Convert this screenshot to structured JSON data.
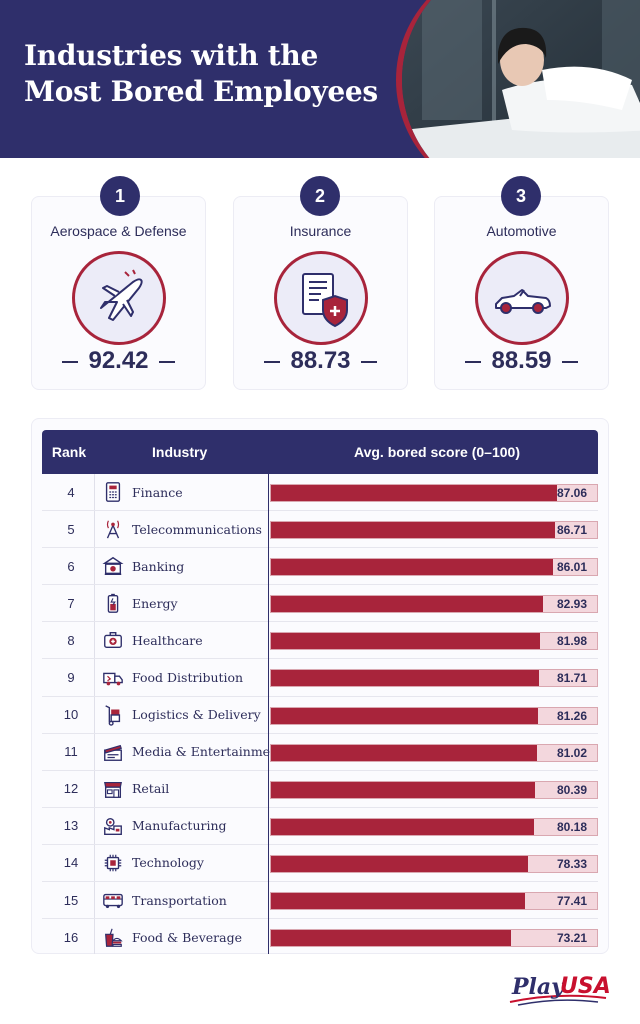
{
  "header": {
    "title": "Industries with the Most Bored Employees"
  },
  "top3": [
    {
      "rank": "1",
      "name": "Aerospace & Defense",
      "score": "92.42",
      "icon": "airplane-icon"
    },
    {
      "rank": "2",
      "name": "Insurance",
      "score": "88.73",
      "icon": "insurance-policy-icon"
    },
    {
      "rank": "3",
      "name": "Automotive",
      "score": "88.59",
      "icon": "convertible-car-icon"
    }
  ],
  "table": {
    "headers": {
      "rank": "Rank",
      "industry": "Industry",
      "score": "Avg. bored score (0–100)"
    }
  },
  "chart_data": {
    "type": "bar",
    "orientation": "horizontal",
    "title": "Industries with the Most Bored Employees",
    "xlabel": "Avg. bored score (0–100)",
    "xlim": [
      0,
      100
    ],
    "ranks": [
      4,
      5,
      6,
      7,
      8,
      9,
      10,
      11,
      12,
      13,
      14,
      15,
      16
    ],
    "categories": [
      "Finance",
      "Telecommunications",
      "Banking",
      "Energy",
      "Healthcare",
      "Food Distribution",
      "Logistics & Delivery",
      "Media & Entertainment",
      "Retail",
      "Manufacturing",
      "Technology",
      "Transportation",
      "Food & Beverage"
    ],
    "values": [
      87.06,
      86.71,
      86.01,
      82.93,
      81.98,
      81.71,
      81.26,
      81.02,
      80.39,
      80.18,
      78.33,
      77.41,
      73.21
    ],
    "value_labels": [
      "87.06",
      "86.71",
      "86.01",
      "82.93",
      "81.98",
      "81.71",
      "81.26",
      "81.02",
      "80.39",
      "80.18",
      "78.33",
      "77.41",
      "73.21"
    ],
    "icons": [
      "calculator-icon",
      "antenna-tower-icon",
      "bank-icon",
      "battery-icon",
      "first-aid-kit-icon",
      "delivery-truck-icon",
      "hand-truck-icon",
      "clapperboard-icon",
      "storefront-icon",
      "gear-factory-icon",
      "microchip-icon",
      "bus-icon",
      "fast-food-icon"
    ]
  },
  "logo": {
    "part1": "Play",
    "part2": "USA"
  },
  "colors": {
    "navy": "#2f2f6b",
    "crimson": "#a8243b",
    "track": "#f3d7dd"
  }
}
